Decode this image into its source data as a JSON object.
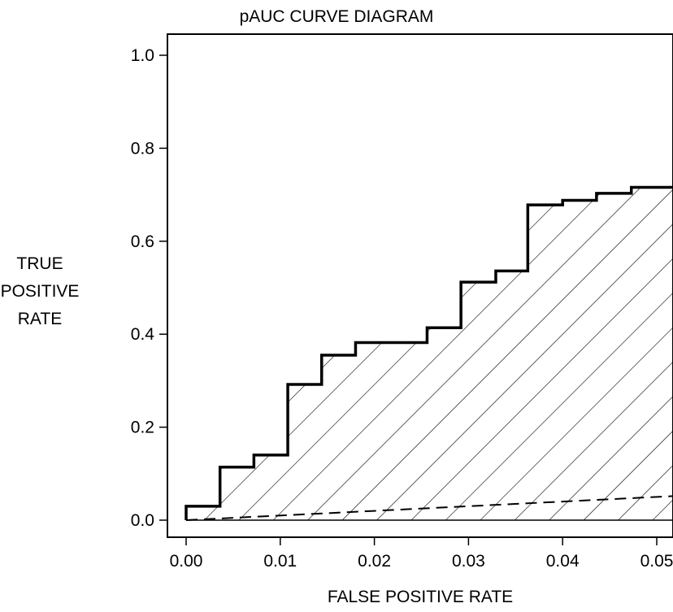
{
  "chart_data": {
    "type": "line",
    "title": "pAUC CURVE DIAGRAM",
    "xlabel": "FALSE POSITIVE RATE",
    "ylabel": "TRUE\nPOSITIVE\nRATE",
    "xlim": [
      0,
      0.052
    ],
    "ylim": [
      0,
      1.0
    ],
    "x_ticks": [
      0.0,
      0.01,
      0.02,
      0.03,
      0.04,
      0.05
    ],
    "x_tick_labels": [
      "0.00",
      "0.01",
      "0.02",
      "0.03",
      "0.04",
      "0.05"
    ],
    "y_ticks": [
      0.0,
      0.2,
      0.4,
      0.6,
      0.8,
      1.0
    ],
    "y_tick_labels": [
      "0.0",
      "0.2",
      "0.4",
      "0.6",
      "0.8",
      "1.0"
    ],
    "grid": false,
    "series": [
      {
        "style": "step",
        "color": "#000000",
        "shaded": "diagonal-hatch",
        "x": [
          0.0,
          0.0,
          0.0036,
          0.0036,
          0.0072,
          0.0072,
          0.0108,
          0.0108,
          0.0144,
          0.0144,
          0.018,
          0.018,
          0.0256,
          0.0256,
          0.0292,
          0.0292,
          0.0329,
          0.0329,
          0.0363,
          0.0363,
          0.04,
          0.04,
          0.0436,
          0.0436,
          0.0473,
          0.0473,
          0.052
        ],
        "y": [
          0.0,
          0.03,
          0.03,
          0.114,
          0.114,
          0.14,
          0.14,
          0.292,
          0.292,
          0.355,
          0.355,
          0.382,
          0.382,
          0.414,
          0.414,
          0.512,
          0.512,
          0.536,
          0.536,
          0.678,
          0.678,
          0.688,
          0.688,
          0.703,
          0.703,
          0.716,
          0.716
        ]
      },
      {
        "style": "dashed",
        "color": "#000000",
        "x": [
          0.0,
          0.052
        ],
        "y": [
          0.0,
          0.052
        ]
      }
    ]
  }
}
